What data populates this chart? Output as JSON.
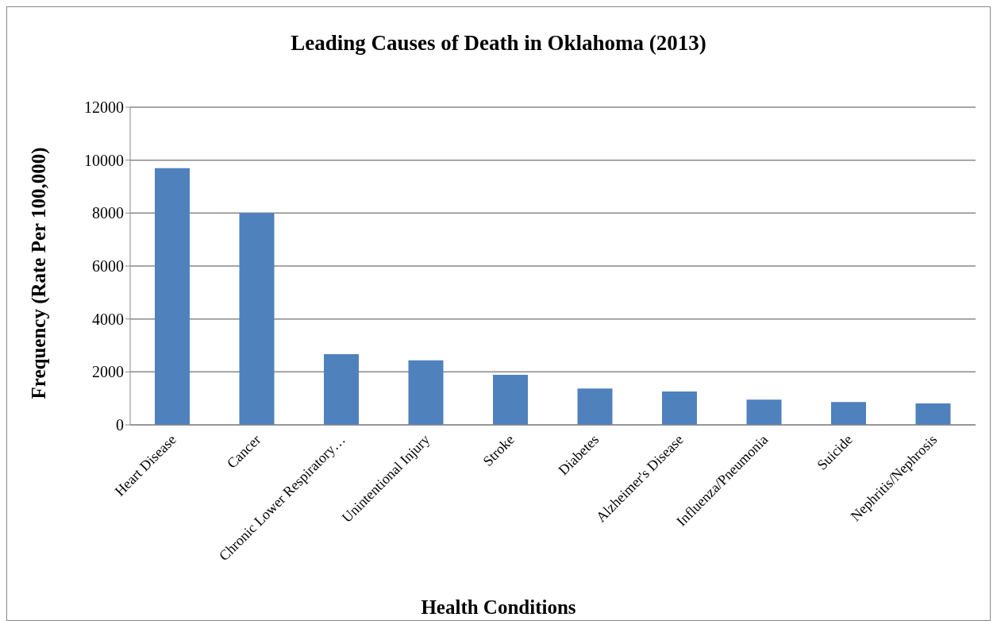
{
  "chart_data": {
    "type": "bar",
    "title": "Leading Causes of Death in Oklahoma (2013)",
    "xlabel": "Health Conditions",
    "ylabel": "Frequency (Rate Per 100,000)",
    "categories": [
      "Heart Disease",
      "Cancer",
      "Chronic Lower Respiratory…",
      "Unintentional Injury",
      "Stroke",
      "Diabetes",
      "Alzheimer's Disease",
      "Influenza/Pneumonia",
      "Suicide",
      "Nephritis/Nephrosis"
    ],
    "values": [
      9700,
      8000,
      2670,
      2440,
      1890,
      1370,
      1260,
      950,
      860,
      810
    ],
    "color": "#4f81bd",
    "ylim": [
      0,
      12000
    ],
    "yticks": [
      0,
      2000,
      4000,
      6000,
      8000,
      10000,
      12000
    ],
    "grid": "y",
    "legend": false
  }
}
